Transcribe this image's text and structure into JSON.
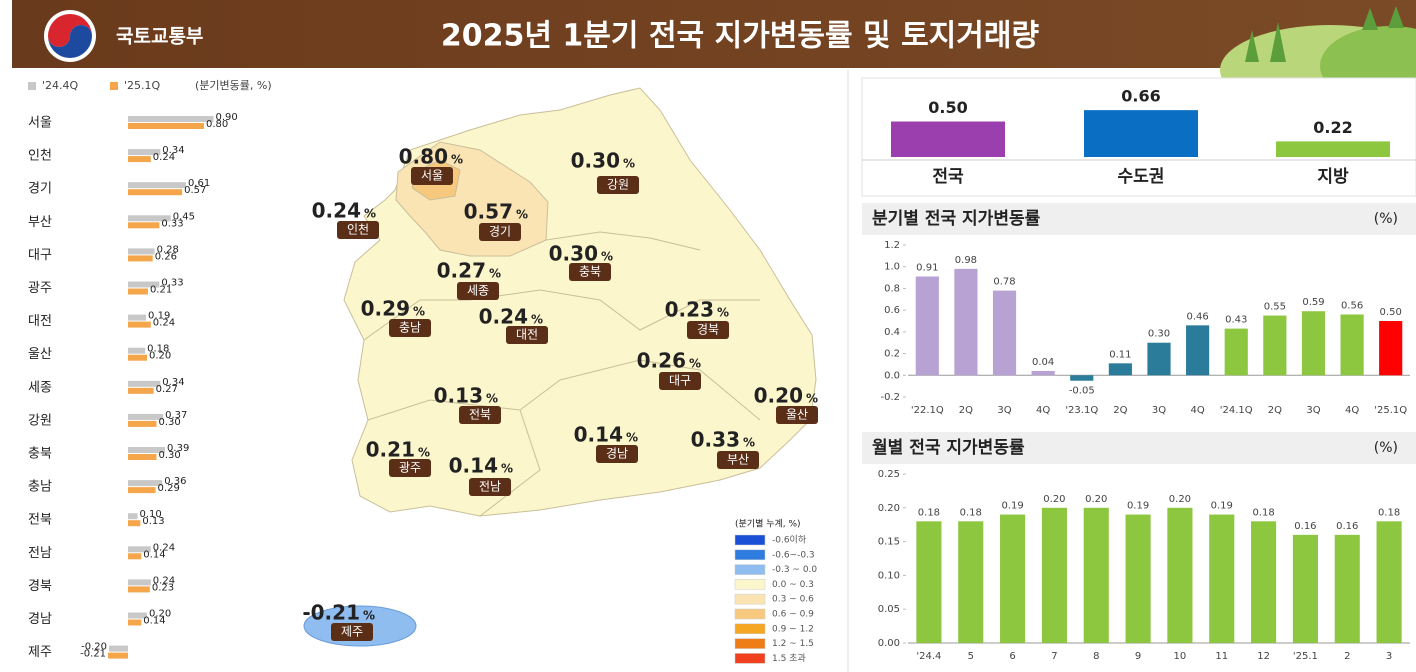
{
  "header": {
    "ministry": "국토교통부",
    "title": "2025년 1분기 전국 지가변동률 및 토지거래량"
  },
  "map": {
    "unit": "%",
    "regions": [
      {
        "name": "서울",
        "value": "0.80"
      },
      {
        "name": "강원",
        "value": "0.30"
      },
      {
        "name": "인천",
        "value": "0.24"
      },
      {
        "name": "경기",
        "value": "0.57"
      },
      {
        "name": "충북",
        "value": "0.30"
      },
      {
        "name": "세종",
        "value": "0.27"
      },
      {
        "name": "충남",
        "value": "0.29"
      },
      {
        "name": "대전",
        "value": "0.24"
      },
      {
        "name": "경북",
        "value": "0.23"
      },
      {
        "name": "대구",
        "value": "0.26"
      },
      {
        "name": "울산",
        "value": "0.20"
      },
      {
        "name": "전북",
        "value": "0.13"
      },
      {
        "name": "경남",
        "value": "0.14"
      },
      {
        "name": "부산",
        "value": "0.33"
      },
      {
        "name": "광주",
        "value": "0.21"
      },
      {
        "name": "전남",
        "value": "0.14"
      },
      {
        "name": "제주",
        "value": "-0.21"
      }
    ],
    "legend_title": "(분기별 누계, %)",
    "legend": [
      {
        "label": "-0.6이하",
        "color": "#1a4fd6"
      },
      {
        "label": "-0.6~-0.3",
        "color": "#2f7de1"
      },
      {
        "label": "-0.3 ~ 0.0",
        "color": "#8fbdf0"
      },
      {
        "label": "0.0 ~ 0.3",
        "color": "#fcf6cc"
      },
      {
        "label": "0.3 ~ 0.6",
        "color": "#fbe4b3"
      },
      {
        "label": "0.6 ~ 0.9",
        "color": "#f7c97e"
      },
      {
        "label": "0.9 ~ 1.2",
        "color": "#f5a623"
      },
      {
        "label": "1.2 ~ 1.5",
        "color": "#ef7d17"
      },
      {
        "label": "1.5 초과",
        "color": "#f0401f"
      }
    ]
  },
  "chart_data": [
    {
      "type": "hbar",
      "unit_label": "(분기변동률, %)",
      "categories": [
        "서울",
        "인천",
        "경기",
        "부산",
        "대구",
        "광주",
        "대전",
        "울산",
        "세종",
        "강원",
        "충북",
        "충남",
        "전북",
        "전남",
        "경북",
        "경남",
        "제주"
      ],
      "series": [
        {
          "name": "'24.4Q",
          "color": "#c8c8c8",
          "values": [
            0.9,
            0.34,
            0.61,
            0.45,
            0.28,
            0.33,
            0.19,
            0.18,
            0.34,
            0.37,
            0.39,
            0.36,
            0.1,
            0.24,
            0.24,
            0.2,
            -0.2
          ],
          "value_labels": [
            "0.90",
            "0.34",
            "0.61",
            "0.45",
            "0.28",
            "0.33",
            "0.19",
            "0.18",
            "0.34",
            "0.37",
            "0.39",
            "0.36",
            "0.10",
            "0.24",
            "0.24",
            "0.20",
            "-0.20"
          ]
        },
        {
          "name": "'25.1Q",
          "color": "#f5a54a",
          "values": [
            0.8,
            0.24,
            0.57,
            0.33,
            0.26,
            0.21,
            0.24,
            0.2,
            0.27,
            0.3,
            0.3,
            0.29,
            0.13,
            0.14,
            0.23,
            0.14,
            -0.21
          ],
          "value_labels": [
            "0.80",
            "0.24",
            "0.57",
            "0.33",
            "0.26",
            "0.21",
            "0.24",
            "0.20",
            "0.27",
            "0.30",
            "0.30",
            "0.29",
            "0.13",
            "0.14",
            "0.23",
            "0.14",
            "-0.21"
          ]
        }
      ]
    },
    {
      "type": "bar",
      "categories": [
        "전국",
        "수도권",
        "지방"
      ],
      "values": [
        0.5,
        0.66,
        0.22
      ],
      "value_labels": [
        "0.50",
        "0.66",
        "0.22"
      ],
      "colors": [
        "#9b3fae",
        "#0a6fc2",
        "#8dc63f"
      ]
    },
    {
      "type": "bar",
      "title": "분기별 전국 지가변동률",
      "unit_label": "(%)",
      "categories": [
        "'22.1Q",
        "2Q",
        "3Q",
        "4Q",
        "'23.1Q",
        "2Q",
        "3Q",
        "4Q",
        "'24.1Q",
        "2Q",
        "3Q",
        "4Q",
        "'25.1Q"
      ],
      "values": [
        0.91,
        0.98,
        0.78,
        0.04,
        -0.05,
        0.11,
        0.3,
        0.46,
        0.43,
        0.55,
        0.59,
        0.56,
        0.5
      ],
      "value_labels": [
        "0.91",
        "0.98",
        "0.78",
        "0.04",
        "-0.05",
        "0.11",
        "0.30",
        "0.46",
        "0.43",
        "0.55",
        "0.59",
        "0.56",
        "0.50"
      ],
      "colors": [
        "#b7a2d3",
        "#b7a2d3",
        "#b7a2d3",
        "#b7a2d3",
        "#2b7c9a",
        "#2b7c9a",
        "#2b7c9a",
        "#2b7c9a",
        "#8dc63f",
        "#8dc63f",
        "#8dc63f",
        "#8dc63f",
        "#ff0000"
      ],
      "ylim": [
        -0.2,
        1.2
      ],
      "yticks": [
        -0.2,
        {
          "value": 0,
          "label": "0.0"
        },
        0.2,
        0.4,
        0.6,
        0.8,
        {
          "value": 1,
          "label": "1.0"
        },
        1.2
      ],
      "grid": false
    },
    {
      "type": "bar",
      "title": "월별 전국 지가변동률",
      "unit_label": "(%)",
      "categories": [
        "'24.4",
        "5",
        "6",
        "7",
        "8",
        "9",
        "10",
        "11",
        "12",
        "'25.1",
        "2",
        "3"
      ],
      "values": [
        0.18,
        0.18,
        0.19,
        0.2,
        0.2,
        0.19,
        0.2,
        0.19,
        0.18,
        0.16,
        0.16,
        0.18
      ],
      "value_labels": [
        "0.18",
        "0.18",
        "0.19",
        "0.20",
        "0.20",
        "0.19",
        "0.20",
        "0.19",
        "0.18",
        "0.16",
        "0.16",
        "0.18"
      ],
      "color": "#8dc63f",
      "ylim": [
        0,
        0.25
      ],
      "yticks": [
        {
          "value": 0,
          "label": "0.00"
        },
        {
          "value": 0.05,
          "label": "0.05"
        },
        {
          "value": 0.1,
          "label": "0.10"
        },
        {
          "value": 0.15,
          "label": "0.15"
        },
        {
          "value": 0.2,
          "label": "0.20"
        },
        {
          "value": 0.25,
          "label": "0.25"
        }
      ],
      "grid": false
    }
  ]
}
